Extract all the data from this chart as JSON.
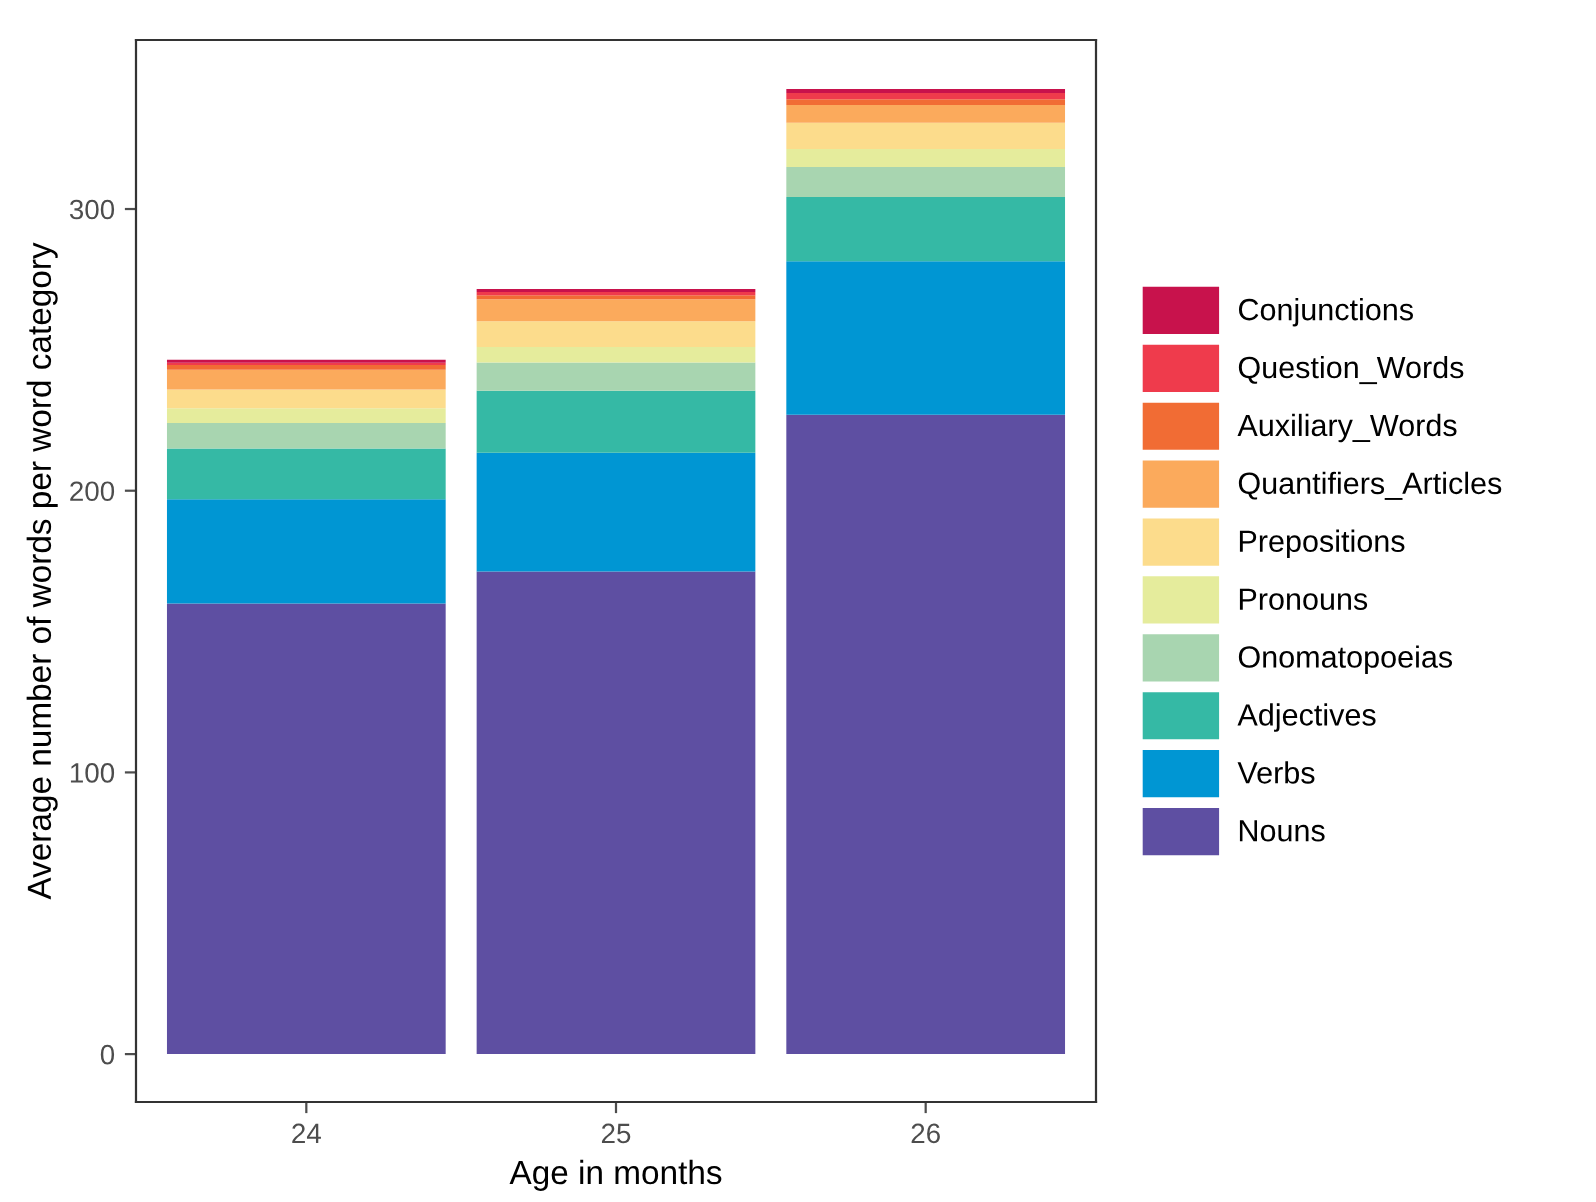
{
  "chart_data": {
    "type": "bar",
    "stacked": true,
    "xlabel": "Age in months",
    "ylabel": "Average number of words per word category",
    "categories": [
      "24",
      "25",
      "26"
    ],
    "series": [
      {
        "name": "Nouns",
        "color": "#5e4fa2",
        "values": [
          160,
          171.3,
          227
        ]
      },
      {
        "name": "Verbs",
        "color": "#0096d3",
        "values": [
          37,
          42.2,
          54.5
        ]
      },
      {
        "name": "Adjectives",
        "color": "#35b9a5",
        "values": [
          18,
          22,
          22.8
        ]
      },
      {
        "name": "Onomatopoeias",
        "color": "#a8d5b0",
        "values": [
          9,
          10,
          10.6
        ]
      },
      {
        "name": "Pronouns",
        "color": "#e5ec9c",
        "values": [
          5.3,
          5.5,
          6.4
        ]
      },
      {
        "name": "Prepositions",
        "color": "#fcdc8c",
        "values": [
          6.6,
          9.2,
          9.3
        ]
      },
      {
        "name": "Quantifiers_Articles",
        "color": "#fbaa5c",
        "values": [
          7,
          7.8,
          6.3
        ]
      },
      {
        "name": "Auxiliary_Words",
        "color": "#f16c34",
        "values": [
          1.7,
          1.4,
          2.1
        ]
      },
      {
        "name": "Question_Words",
        "color": "#ef3b4c",
        "values": [
          0.8,
          1.1,
          2.2
        ]
      },
      {
        "name": "Conjunctions",
        "color": "#c8124c",
        "values": [
          1.1,
          1.1,
          1.4
        ]
      }
    ],
    "ylim": [
      -17,
      360
    ],
    "yticks": [
      0,
      100,
      200,
      300
    ],
    "grid": false,
    "legend": "right"
  }
}
